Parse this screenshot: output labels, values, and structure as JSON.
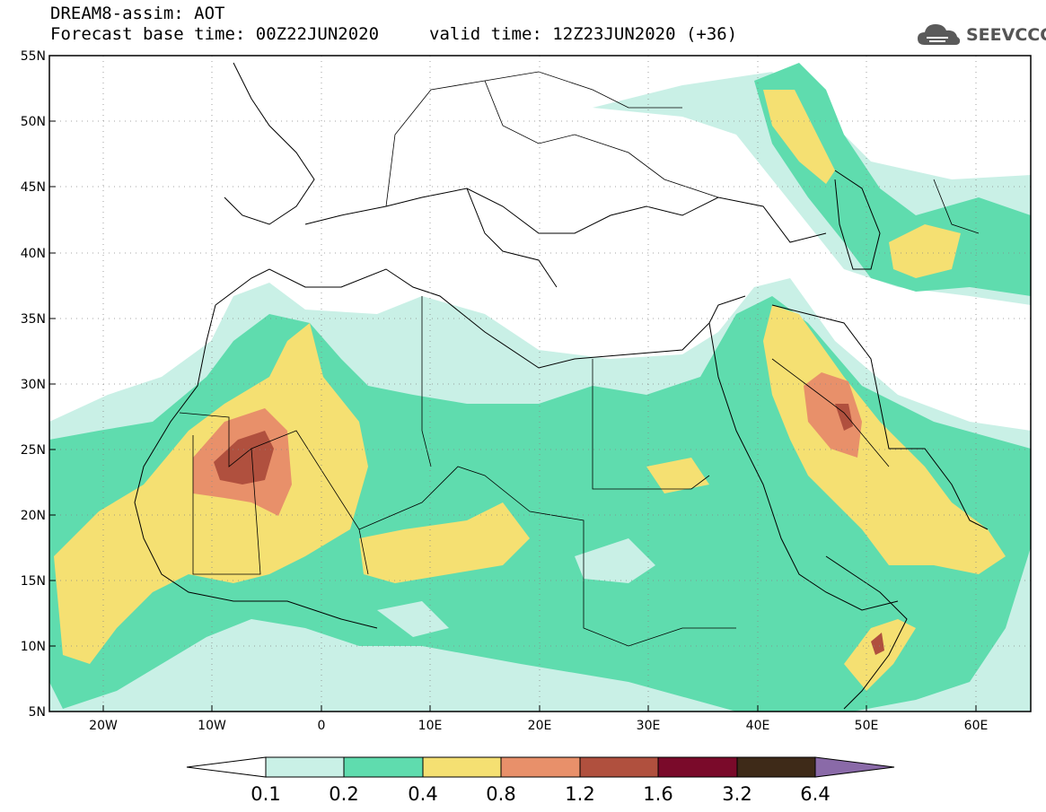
{
  "header": {
    "line1": "DREAM8-assim: AOT",
    "line2": "Forecast base time: 00Z22JUN2020",
    "line3": "valid time: 12Z23JUN2020 (+36)"
  },
  "logo": {
    "text": "SEEVCCC",
    "icon": "cloud-icon"
  },
  "map": {
    "variable": "AOT",
    "lon_range": [
      -25,
      65
    ],
    "lat_range": [
      5,
      55
    ],
    "lat_ticks": [
      "55N",
      "50N",
      "45N",
      "40N",
      "35N",
      "30N",
      "25N",
      "20N",
      "15N",
      "10N",
      "5N"
    ],
    "lon_ticks": [
      "20W",
      "10W",
      "0",
      "10E",
      "20E",
      "30E",
      "40E",
      "50E",
      "60E"
    ]
  },
  "colorbar": {
    "labels": [
      "0.1",
      "0.2",
      "0.4",
      "0.8",
      "1.2",
      "1.6",
      "3.2",
      "6.4"
    ],
    "colors": [
      "#ffffff",
      "#c9f0e6",
      "#5fdcae",
      "#f5e072",
      "#e8906a",
      "#b0503e",
      "#7a0a2a",
      "#3e2a18",
      "#8a6aa8"
    ]
  }
}
